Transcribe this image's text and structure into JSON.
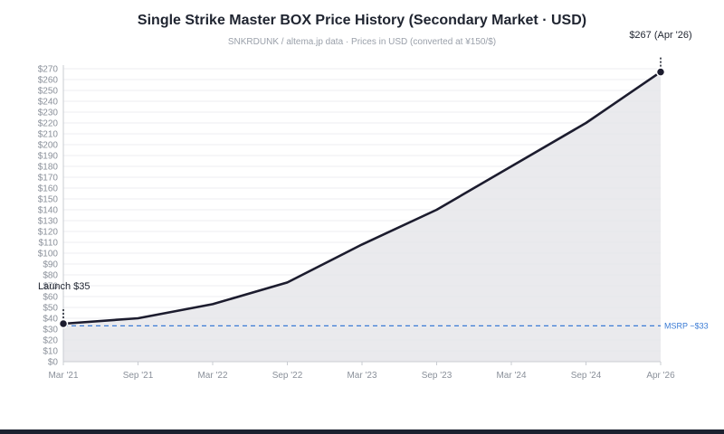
{
  "chart_data": {
    "type": "line",
    "title": "Single Strike Master BOX Price History (Secondary Market · USD)",
    "subtitle": "SNKRDUNK / altema.jp data · Prices in USD (converted at ¥150/$)",
    "x_categories": [
      "Mar '21",
      "Sep '21",
      "Mar '22",
      "Sep '22",
      "Mar '23",
      "Sep '23",
      "Mar '24",
      "Sep '24",
      "Apr '26"
    ],
    "y_tick_labels": [
      "$0",
      "$10",
      "$20",
      "$30",
      "$40",
      "$50",
      "$60",
      "$70",
      "$80",
      "$90",
      "$100",
      "$110",
      "$120",
      "$130",
      "$140",
      "$150",
      "$160",
      "$170",
      "$180",
      "$190",
      "$200",
      "$210",
      "$220",
      "$230",
      "$240",
      "$250",
      "$260",
      "$270"
    ],
    "ylim": [
      0,
      270
    ],
    "grid": true,
    "series": [
      {
        "x": [
          "Mar '21",
          "Sep '21",
          "Mar '22",
          "Sep '22",
          "Mar '23",
          "Sep '23",
          "Mar '24",
          "Sep '24",
          "Apr '26"
        ],
        "values": [
          35,
          40,
          53,
          73,
          108,
          140,
          180,
          220,
          267
        ]
      }
    ],
    "reference_line": {
      "label": "MSRP ~$33",
      "value": 33
    },
    "annotations": [
      {
        "label": "Launch $35",
        "x": "Mar '21",
        "value": 35
      },
      {
        "label": "$267 (Apr '26)",
        "x": "Apr '26",
        "value": 267
      }
    ],
    "colors": {
      "line": "#1c1c2e",
      "area": "#e6e6ea",
      "reference": "#3a7bd5",
      "grid": "#eceef2",
      "axis": "#c9ccd2"
    }
  }
}
